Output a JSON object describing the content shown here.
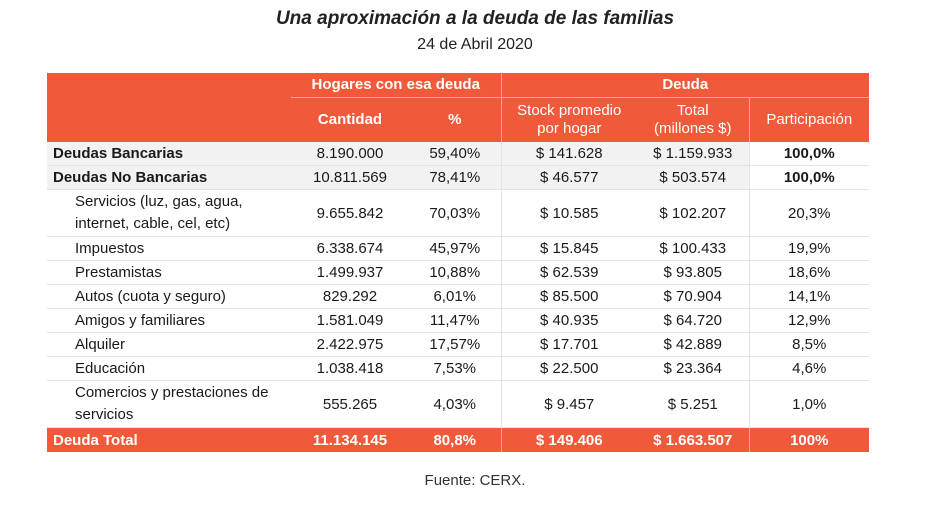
{
  "title": "Una aproximación a la deuda de las familias",
  "date": "24 de Abril 2020",
  "header": {
    "group_hogares": "Hogares con esa deuda",
    "group_deuda": "Deuda",
    "col_cantidad": "Cantidad",
    "col_pct": "%",
    "col_stock_1": "Stock promedio",
    "col_stock_2": "por hogar",
    "col_total_1": "Total",
    "col_total_2": "(millones $)",
    "col_participacion": "Participación"
  },
  "rows": [
    {
      "name": "Deudas Bancarias",
      "cantidad": "8.190.000",
      "pct": "59,40%",
      "stock": "$ 141.628",
      "total": "$ 1.159.933",
      "part": "100,0%"
    },
    {
      "name": "Deudas No Bancarias",
      "cantidad": "10.811.569",
      "pct": "78,41%",
      "stock": "$ 46.577",
      "total": "$ 503.574",
      "part": "100,0%"
    },
    {
      "name": "Servicios (luz, gas, agua, internet, cable, cel, etc)",
      "cantidad": "9.655.842",
      "pct": "70,03%",
      "stock": "$ 10.585",
      "total": "$ 102.207",
      "part": "20,3%"
    },
    {
      "name": "Impuestos",
      "cantidad": "6.338.674",
      "pct": "45,97%",
      "stock": "$ 15.845",
      "total": "$ 100.433",
      "part": "19,9%"
    },
    {
      "name": "Prestamistas",
      "cantidad": "1.499.937",
      "pct": "10,88%",
      "stock": "$ 62.539",
      "total": "$ 93.805",
      "part": "18,6%"
    },
    {
      "name": "Autos (cuota y seguro)",
      "cantidad": "829.292",
      "pct": "6,01%",
      "stock": "$ 85.500",
      "total": "$ 70.904",
      "part": "14,1%"
    },
    {
      "name": "Amigos y familiares",
      "cantidad": "1.581.049",
      "pct": "11,47%",
      "stock": "$ 40.935",
      "total": "$ 64.720",
      "part": "12,9%"
    },
    {
      "name": "Alquiler",
      "cantidad": "2.422.975",
      "pct": "17,57%",
      "stock": "$ 17.701",
      "total": "$ 42.889",
      "part": "8,5%"
    },
    {
      "name": "Educación",
      "cantidad": "1.038.418",
      "pct": "7,53%",
      "stock": "$ 22.500",
      "total": "$ 23.364",
      "part": "4,6%"
    },
    {
      "name": "Comercios y prestaciones de servicios",
      "cantidad": "555.265",
      "pct": "4,03%",
      "stock": "$ 9.457",
      "total": "$ 5.251",
      "part": "1,0%"
    }
  ],
  "footer": {
    "name": "Deuda Total",
    "cantidad": "11.134.145",
    "pct": "80,8%",
    "stock": "$ 149.406",
    "total": "$ 1.663.507",
    "part": "100%"
  },
  "source": "Fuente: CERX.",
  "colors": {
    "header_bg": "#f05a3a",
    "header_text": "#ffffff",
    "row_bg": "#f2f2f2"
  }
}
